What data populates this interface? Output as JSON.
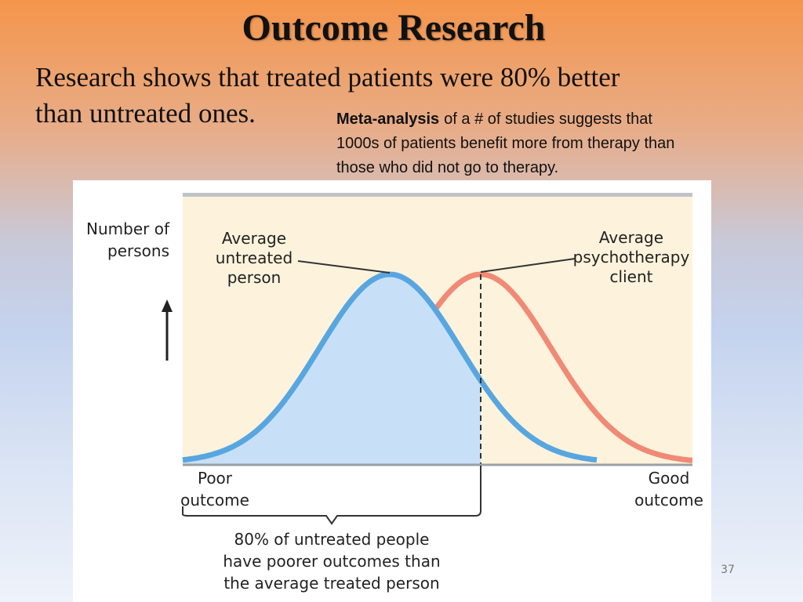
{
  "slide": {
    "title": "Outcome Research",
    "body": {
      "lines": [
        "Research shows that treated patients were 80% better",
        "than untreated ones."
      ]
    },
    "note": {
      "term": "Meta-analysis",
      "lines": [
        "of a # of studies suggests that",
        "1000s of patients benefit more from therapy than",
        "those who did not go to therapy."
      ]
    },
    "page_number": "37"
  },
  "figure": {
    "y_axis_label": {
      "lines": [
        "Number of",
        "persons"
      ]
    },
    "untreated_label": {
      "lines": [
        "Average",
        "untreated",
        "person"
      ]
    },
    "treated_label": {
      "lines": [
        "Average",
        "psychotherapy",
        "client"
      ]
    },
    "left_label": {
      "lines": [
        "Poor",
        "outcome"
      ]
    },
    "right_label": {
      "lines": [
        "Good",
        "outcome"
      ]
    },
    "bracket_label": {
      "lines": [
        "80% of untreated people",
        "have poorer outcomes than",
        "the average treated person"
      ]
    }
  }
}
